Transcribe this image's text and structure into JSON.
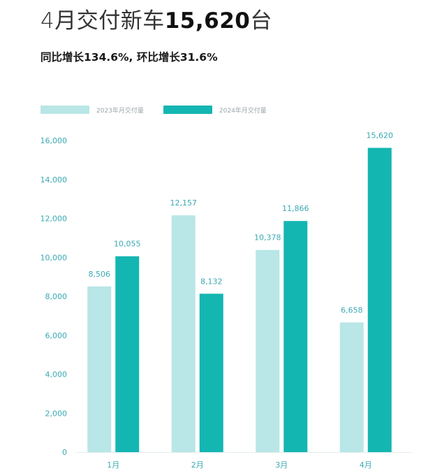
{
  "header": {
    "title_prefix": "4月交付新车",
    "title_number": "15,620",
    "title_suffix": "台",
    "subtitle": "同比增长134.6%, 环比增长31.6%"
  },
  "legend": {
    "items": [
      {
        "label": "2023年月交付量",
        "color": "#b9e6e6"
      },
      {
        "label": "2024年月交付量",
        "color": "#14b6b2"
      }
    ]
  },
  "chart_data": {
    "type": "bar",
    "categories": [
      "1月",
      "2月",
      "3月",
      "4月"
    ],
    "series": [
      {
        "name": "2023年月交付量",
        "values": [
          8506,
          12157,
          10378,
          6658
        ],
        "labels": [
          "8,506",
          "12,157",
          "10,378",
          "6,658"
        ],
        "color": "#b9e6e6"
      },
      {
        "name": "2024年月交付量",
        "values": [
          10055,
          8132,
          11866,
          15620
        ],
        "labels": [
          "10,055",
          "8,132",
          "11,866",
          "15,620"
        ],
        "color": "#14b6b2"
      }
    ],
    "yticks": [
      0,
      2000,
      4000,
      6000,
      8000,
      10000,
      12000,
      14000,
      16000
    ],
    "ytick_labels": [
      "0",
      "2,000",
      "4,000",
      "6,000",
      "8,000",
      "10,000",
      "12,000",
      "14,000",
      "16,000"
    ],
    "ylim": [
      0,
      16000
    ],
    "grid": false,
    "legend_position": "top-left"
  }
}
